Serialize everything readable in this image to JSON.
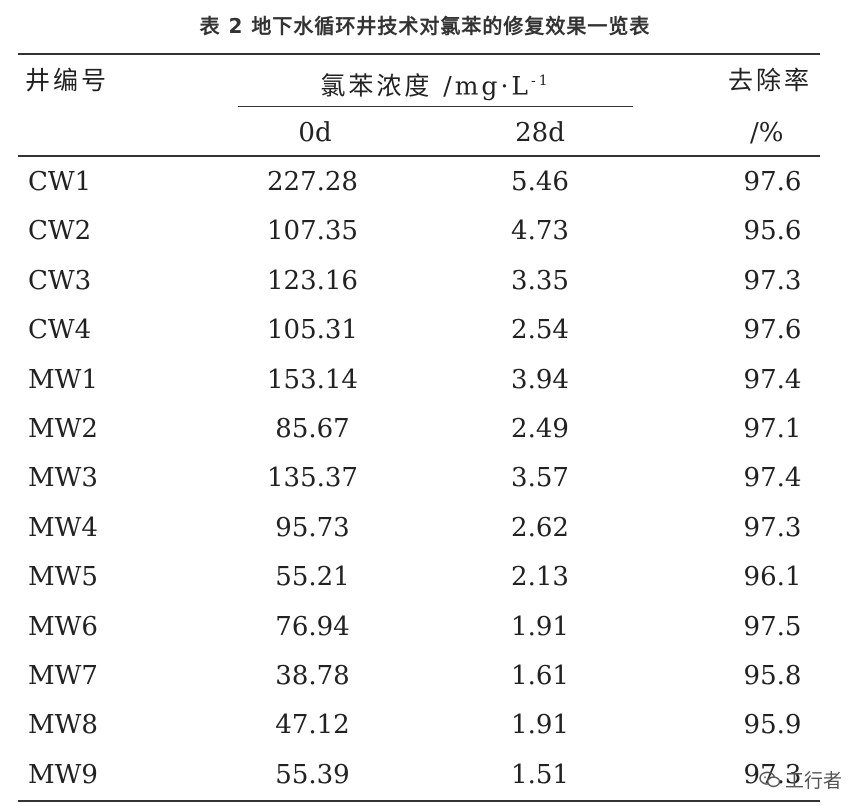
{
  "title": "表 2 地下水循环井技术对氯苯的修复效果一览表",
  "header": {
    "well": "井编号",
    "concentration": "氯苯浓度 /mg·L",
    "concentration_sup": "-1",
    "removal": "去除率",
    "day0": "0d",
    "day28": "28d",
    "removal_unit": "/%"
  },
  "rows": [
    {
      "well": "CW1",
      "day0": "227.28",
      "day28": "5.46",
      "rate": "97.6"
    },
    {
      "well": "CW2",
      "day0": "107.35",
      "day28": "4.73",
      "rate": "95.6"
    },
    {
      "well": "CW3",
      "day0": "123.16",
      "day28": "3.35",
      "rate": "97.3"
    },
    {
      "well": "CW4",
      "day0": "105.31",
      "day28": "2.54",
      "rate": "97.6"
    },
    {
      "well": "MW1",
      "day0": "153.14",
      "day28": "3.94",
      "rate": "97.4"
    },
    {
      "well": "MW2",
      "day0": "85.67",
      "day28": "2.49",
      "rate": "97.1"
    },
    {
      "well": "MW3",
      "day0": "135.37",
      "day28": "3.57",
      "rate": "97.4"
    },
    {
      "well": "MW4",
      "day0": "95.73",
      "day28": "2.62",
      "rate": "97.3"
    },
    {
      "well": "MW5",
      "day0": "55.21",
      "day28": "2.13",
      "rate": "96.1"
    },
    {
      "well": "MW6",
      "day0": "76.94",
      "day28": "1.91",
      "rate": "97.5"
    },
    {
      "well": "MW7",
      "day0": "38.78",
      "day28": "1.61",
      "rate": "95.8"
    },
    {
      "well": "MW8",
      "day0": "47.12",
      "day28": "1.91",
      "rate": "95.9"
    },
    {
      "well": "MW9",
      "day0": "55.39",
      "day28": "1.51",
      "rate": "97.3"
    }
  ],
  "watermark": {
    "icon": "wechat-icon",
    "text": "工行者"
  }
}
